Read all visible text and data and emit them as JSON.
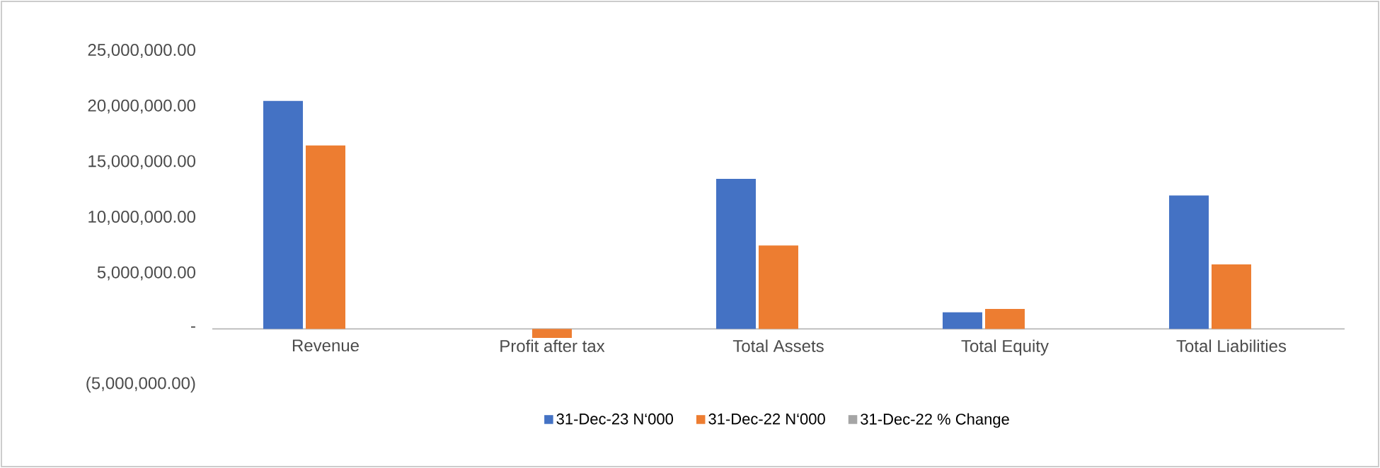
{
  "chart_data": {
    "type": "bar",
    "categories": [
      "Revenue",
      "Profit after tax",
      "Total Assets",
      "Total Equity",
      "Total Liabilities"
    ],
    "series": [
      {
        "name": "31-Dec-23 N‘000",
        "color": "#4472c4",
        "values": [
          20500000,
          0,
          13500000,
          1500000,
          12000000
        ]
      },
      {
        "name": "31-Dec-22 N‘000",
        "color": "#ed7d31",
        "values": [
          16500000,
          -800000,
          7500000,
          1800000,
          5800000
        ]
      },
      {
        "name": "31-Dec-22 % Change",
        "color": "#a5a5a5",
        "values": [
          0,
          0,
          0,
          0,
          0
        ]
      }
    ],
    "ylim": [
      -5000000,
      25000000
    ],
    "yticks": [
      {
        "value": -5000000,
        "label": "(5,000,000.00)"
      },
      {
        "value": 0,
        "label": "-"
      },
      {
        "value": 5000000,
        "label": "5,000,000.00"
      },
      {
        "value": 10000000,
        "label": "10,000,000.00"
      },
      {
        "value": 15000000,
        "label": "15,000,000.00"
      },
      {
        "value": 20000000,
        "label": "20,000,000.00"
      },
      {
        "value": 25000000,
        "label": "25,000,000.00"
      }
    ],
    "grid": false,
    "legend": "bottom"
  }
}
